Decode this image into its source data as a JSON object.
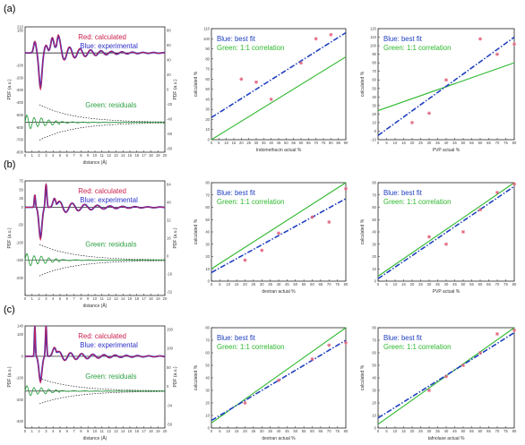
{
  "rows": [
    {
      "label": "(a)"
    },
    {
      "label": "(b)"
    },
    {
      "label": "(c)"
    }
  ],
  "colors": {
    "calculated": "#cc1f4d",
    "experimental": "#2b30c8",
    "residuals": "#2ea043",
    "fit": "#2040c0",
    "identity": "#2eb82e",
    "points": "#e0607a"
  },
  "chart_data": [
    {
      "id": "a-pdf",
      "type": "line",
      "row": 0,
      "legend": [
        "Red: calculated",
        "Blue: experimental",
        "Green: residuals"
      ],
      "xlabel": "distance (Å)",
      "ylabel": "PDF (a.u.)",
      "ylabel_right": "PDF (a.u.)",
      "xlim": [
        0,
        20
      ],
      "ylim": [
        -800,
        210
      ],
      "xticks": [
        0,
        1,
        2,
        3,
        4,
        5,
        6,
        7,
        8,
        9,
        10,
        11,
        12,
        13,
        14,
        15,
        16,
        17,
        18,
        19,
        20
      ],
      "yticks": [
        210,
        180,
        -100,
        -200,
        -300,
        -400,
        -500,
        -600,
        -700,
        -800
      ],
      "yticks_right": [
        80,
        60,
        40,
        20,
        0,
        -20,
        -40,
        -60,
        -80
      ],
      "baseline": 0,
      "residual_offset": -560,
      "peaks": [
        [
          1.4,
          90,
          0.25
        ],
        [
          3.0,
          60,
          0.3
        ],
        [
          3.9,
          120,
          0.32
        ],
        [
          4.7,
          80,
          0.35
        ]
      ],
      "osc": {
        "period": 1.5,
        "decay": 4.5,
        "amp": 70
      }
    },
    {
      "id": "a-indomethacin",
      "type": "scatter",
      "row": 0,
      "legend": [
        "Blue: best fit",
        "Green: 1:1 correlation"
      ],
      "xlabel": "Indomethacin actual %",
      "ylabel": "calculated %",
      "xlim": [
        0,
        90
      ],
      "ylim": [
        0,
        110
      ],
      "xticks": [
        0,
        5,
        10,
        15,
        20,
        25,
        30,
        35,
        40,
        45,
        50,
        55,
        60,
        65,
        70,
        75,
        80,
        85,
        90
      ],
      "yticks": [
        0,
        10,
        20,
        30,
        40,
        50,
        60,
        70,
        80,
        90,
        100,
        110
      ],
      "x": [
        20,
        30,
        40,
        60,
        70,
        80
      ],
      "y": [
        60,
        57,
        40,
        76,
        100,
        104
      ],
      "fit": [
        [
          0,
          22
        ],
        [
          90,
          106
        ]
      ],
      "identity": [
        [
          0,
          0
        ],
        [
          90,
          82
        ]
      ]
    },
    {
      "id": "a-pvp",
      "type": "scatter",
      "row": 0,
      "legend": [
        "Blue: best fit",
        "Green: 1:1 correlation"
      ],
      "xlabel": "PVP actual %",
      "ylabel": "calculated %",
      "xlim": [
        0,
        80
      ],
      "ylim": [
        -10,
        120
      ],
      "xticks": [
        0,
        5,
        10,
        15,
        20,
        25,
        30,
        35,
        40,
        45,
        50,
        55,
        60,
        65,
        70,
        75,
        80
      ],
      "yticks": [
        -10,
        0,
        10,
        20,
        30,
        40,
        50,
        60,
        70,
        80,
        90,
        100,
        110,
        120
      ],
      "x": [
        20,
        30,
        40,
        60,
        70,
        80
      ],
      "y": [
        10,
        21,
        60,
        108,
        90,
        102
      ],
      "fit": [
        [
          0,
          -5
        ],
        [
          80,
          110
        ]
      ],
      "identity": [
        [
          0,
          24
        ],
        [
          80,
          80
        ]
      ]
    },
    {
      "id": "b-pdf",
      "type": "line",
      "row": 1,
      "legend": [
        "Red: calculated",
        "Blue: experimental",
        "Green: residuals"
      ],
      "xlabel": "distance (Å)",
      "ylabel": "PDF (a.u.)",
      "ylabel_right": "PDF (a.u.)",
      "xlim": [
        0,
        20
      ],
      "ylim": [
        -250,
        75
      ],
      "xticks": [
        0,
        1,
        2,
        3,
        4,
        5,
        6,
        7,
        8,
        9,
        10,
        11,
        12,
        13,
        14,
        15,
        16,
        17,
        18,
        19,
        20
      ],
      "yticks": [
        75,
        50,
        25,
        0,
        -50,
        -100,
        -150,
        -200
      ],
      "yticks_right": [
        64,
        48,
        32,
        16,
        0,
        -16,
        -32
      ],
      "baseline": 0,
      "residual_offset": -150,
      "peaks": [
        [
          1.4,
          35,
          0.12
        ],
        [
          3.0,
          65,
          0.15
        ],
        [
          4.2,
          25,
          0.3
        ]
      ],
      "osc": {
        "period": 1.8,
        "decay": 5,
        "amp": 18
      }
    },
    {
      "id": "b-dextran",
      "type": "scatter",
      "row": 1,
      "legend": [
        "Blue: best fit",
        "Green: 1:1 correlation"
      ],
      "xlabel": "dextran actual %",
      "ylabel": "calculated %",
      "xlim": [
        0,
        80
      ],
      "ylim": [
        0,
        80
      ],
      "xticks": [
        0,
        5,
        10,
        15,
        20,
        25,
        30,
        35,
        40,
        45,
        50,
        55,
        60,
        65,
        70,
        75,
        80
      ],
      "yticks": [
        0,
        10,
        20,
        30,
        40,
        50,
        60,
        70,
        80
      ],
      "x": [
        20,
        30,
        40,
        60,
        70,
        80
      ],
      "y": [
        17,
        25,
        39,
        52,
        48,
        75
      ],
      "fit": [
        [
          0,
          7
        ],
        [
          80,
          67
        ]
      ],
      "identity": [
        [
          0,
          10
        ],
        [
          80,
          80
        ]
      ]
    },
    {
      "id": "b-pvp",
      "type": "scatter",
      "row": 1,
      "legend": [
        "Blue: best fit",
        "Green: 1:1 correlation"
      ],
      "xlabel": "PVP actual %",
      "ylabel": "calculated %",
      "xlim": [
        0,
        80
      ],
      "ylim": [
        0,
        80
      ],
      "xticks": [
        0,
        5,
        10,
        15,
        20,
        25,
        30,
        35,
        40,
        45,
        50,
        55,
        60,
        65,
        70,
        75,
        80
      ],
      "yticks": [
        0,
        10,
        20,
        30,
        40,
        50,
        60,
        70,
        80
      ],
      "x": [
        30,
        40,
        50,
        60,
        70,
        80
      ],
      "y": [
        36,
        30,
        40,
        58,
        72,
        79
      ],
      "fit": [
        [
          0,
          2
        ],
        [
          80,
          77
        ]
      ],
      "identity": [
        [
          0,
          4
        ],
        [
          80,
          80
        ]
      ]
    },
    {
      "id": "c-pdf",
      "type": "line",
      "row": 2,
      "legend": [
        "Red: calculated",
        "Blue: experimental",
        "Green: residuals"
      ],
      "xlabel": "distance (Å)",
      "ylabel": "PDF (a.u.)",
      "ylabel_right": "PDF (a.u.)",
      "xlim": [
        0,
        20
      ],
      "ylim": [
        -330,
        140
      ],
      "xticks": [
        0,
        1,
        2,
        3,
        4,
        5,
        6,
        7,
        8,
        9,
        10,
        11,
        12,
        13,
        14,
        15,
        16,
        17,
        18,
        19,
        20
      ],
      "yticks": [
        140,
        100,
        0,
        -100,
        -200,
        -300
      ],
      "yticks_right": [
        150,
        100,
        50,
        0,
        -34,
        -50
      ],
      "baseline": 0,
      "residual_offset": -160,
      "peaks": [
        [
          1.4,
          140,
          0.1
        ],
        [
          3.0,
          140,
          0.12
        ],
        [
          4.2,
          40,
          0.35
        ]
      ],
      "osc": {
        "period": 1.6,
        "decay": 6,
        "amp": 22
      }
    },
    {
      "id": "c-dextran",
      "type": "scatter",
      "row": 2,
      "legend": [
        "Blue: best fit",
        "Green: 1:1 correlation"
      ],
      "xlabel": "dextran actual %",
      "ylabel": "calculated %",
      "xlim": [
        0,
        80
      ],
      "ylim": [
        0,
        80
      ],
      "xticks": [
        0,
        5,
        10,
        15,
        20,
        25,
        30,
        35,
        40,
        45,
        50,
        55,
        60,
        65,
        70,
        75,
        80
      ],
      "yticks": [
        0,
        10,
        20,
        30,
        40,
        50,
        60,
        70,
        80
      ],
      "x": [
        20,
        40,
        60,
        70,
        80
      ],
      "y": [
        20,
        38,
        55,
        66,
        68
      ],
      "fit": [
        [
          0,
          6
        ],
        [
          80,
          70
        ]
      ],
      "identity": [
        [
          0,
          4
        ],
        [
          80,
          80
        ]
      ]
    },
    {
      "id": "c-tafnolase",
      "type": "scatter",
      "row": 2,
      "legend": [
        "Blue: best fit",
        "Green: 1:1 correlation"
      ],
      "xlabel": "tafnolase actual %",
      "ylabel": "calculated %",
      "xlim": [
        0,
        80
      ],
      "ylim": [
        0,
        80
      ],
      "xticks": [
        0,
        5,
        10,
        15,
        20,
        25,
        30,
        35,
        40,
        45,
        50,
        55,
        60,
        65,
        70,
        75,
        80
      ],
      "yticks": [
        0,
        10,
        20,
        30,
        40,
        50,
        60,
        70,
        80
      ],
      "x": [
        30,
        40,
        50,
        60,
        70,
        80
      ],
      "y": [
        30,
        41,
        50,
        60,
        75,
        78
      ],
      "fit": [
        [
          0,
          8
        ],
        [
          80,
          76
        ]
      ],
      "identity": [
        [
          0,
          3
        ],
        [
          80,
          80
        ]
      ]
    }
  ]
}
